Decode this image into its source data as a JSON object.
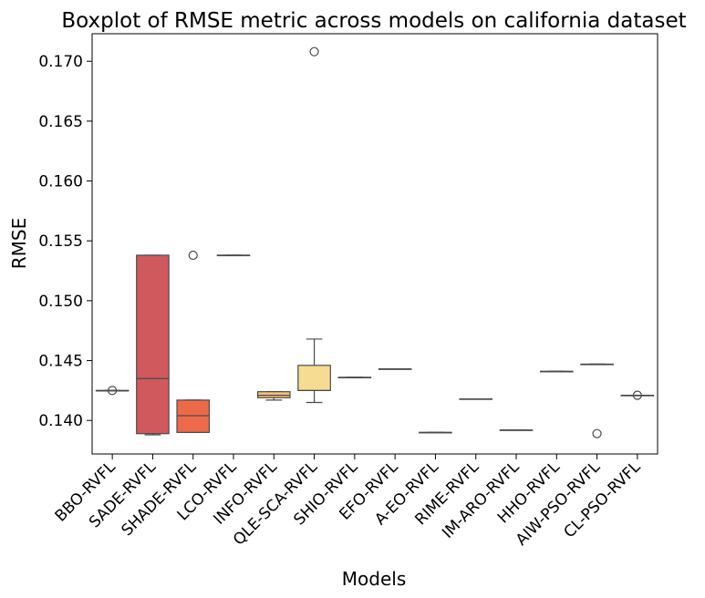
{
  "chart_data": {
    "type": "boxplot",
    "title": "Boxplot of RMSE metric across models on california dataset",
    "xlabel": "Models",
    "ylabel": "RMSE",
    "ylim": [
      0.1372,
      0.1723
    ],
    "yticks": [
      0.14,
      0.145,
      0.15,
      0.155,
      0.16,
      0.165,
      0.17
    ],
    "ytick_labels": [
      "0.140",
      "0.145",
      "0.150",
      "0.155",
      "0.160",
      "0.165",
      "0.170"
    ],
    "grid": false,
    "legend": "none",
    "categories": [
      "BBO-RVFL",
      "SADE-RVFL",
      "SHADE-RVFL",
      "LCO-RVFL",
      "INFO-RVFL",
      "QLE-SCA-RVFL",
      "SHIO-RVFL",
      "EFO-RVFL",
      "A-EO-RVFL",
      "RIME-RVFL",
      "IM-ARO-RVFL",
      "HHO-RVFL",
      "AIW-PSO-RVFL",
      "CL-PSO-RVFL"
    ],
    "boxes": [
      {
        "whislo": 0.1425,
        "q1": 0.1425,
        "med": 0.1425,
        "q3": 0.1425,
        "whishi": 0.1425,
        "fliers": [
          0.1425
        ],
        "color": "#9e0142"
      },
      {
        "whislo": 0.1388,
        "q1": 0.1389,
        "med": 0.1435,
        "q3": 0.1538,
        "whishi": 0.1538,
        "fliers": [],
        "color": "#d0595e"
      },
      {
        "whislo": 0.139,
        "q1": 0.139,
        "med": 0.1404,
        "q3": 0.1417,
        "whishi": 0.1417,
        "fliers": [
          0.1538
        ],
        "color": "#ec6a4a"
      },
      {
        "whislo": 0.1538,
        "q1": 0.1538,
        "med": 0.1538,
        "q3": 0.1538,
        "whishi": 0.1538,
        "fliers": [],
        "color": "#f59a5b"
      },
      {
        "whislo": 0.1417,
        "q1": 0.1419,
        "med": 0.1421,
        "q3": 0.1424,
        "whishi": 0.1424,
        "fliers": [],
        "color": "#f8c274"
      },
      {
        "whislo": 0.1415,
        "q1": 0.1425,
        "med": 0.1425,
        "q3": 0.1446,
        "whishi": 0.1468,
        "fliers": [
          0.1708
        ],
        "color": "#f6dc92"
      },
      {
        "whislo": 0.1436,
        "q1": 0.1436,
        "med": 0.1436,
        "q3": 0.1436,
        "whishi": 0.1436,
        "fliers": [],
        "color": "#f8ecab"
      },
      {
        "whislo": 0.1443,
        "q1": 0.1443,
        "med": 0.1443,
        "q3": 0.1443,
        "whishi": 0.1443,
        "fliers": [],
        "color": "#eef7a8"
      },
      {
        "whislo": 0.139,
        "q1": 0.139,
        "med": 0.139,
        "q3": 0.139,
        "whishi": 0.139,
        "fliers": [],
        "color": "#cfeb9c"
      },
      {
        "whislo": 0.1418,
        "q1": 0.1418,
        "med": 0.1418,
        "q3": 0.1418,
        "whishi": 0.1418,
        "fliers": [],
        "color": "#a4d9a4"
      },
      {
        "whislo": 0.1392,
        "q1": 0.1392,
        "med": 0.1392,
        "q3": 0.1392,
        "whishi": 0.1392,
        "fliers": [],
        "color": "#72c2a5"
      },
      {
        "whislo": 0.1441,
        "q1": 0.1441,
        "med": 0.1441,
        "q3": 0.1441,
        "whishi": 0.1441,
        "fliers": [],
        "color": "#4a9cb5"
      },
      {
        "whislo": 0.1447,
        "q1": 0.1447,
        "med": 0.1447,
        "q3": 0.1447,
        "whishi": 0.1447,
        "fliers": [
          0.1389
        ],
        "color": "#4a6fb3"
      },
      {
        "whislo": 0.1421,
        "q1": 0.1421,
        "med": 0.1421,
        "q3": 0.1421,
        "whishi": 0.1421,
        "fliers": [
          0.1421
        ],
        "color": "#5e4fa2"
      }
    ]
  }
}
